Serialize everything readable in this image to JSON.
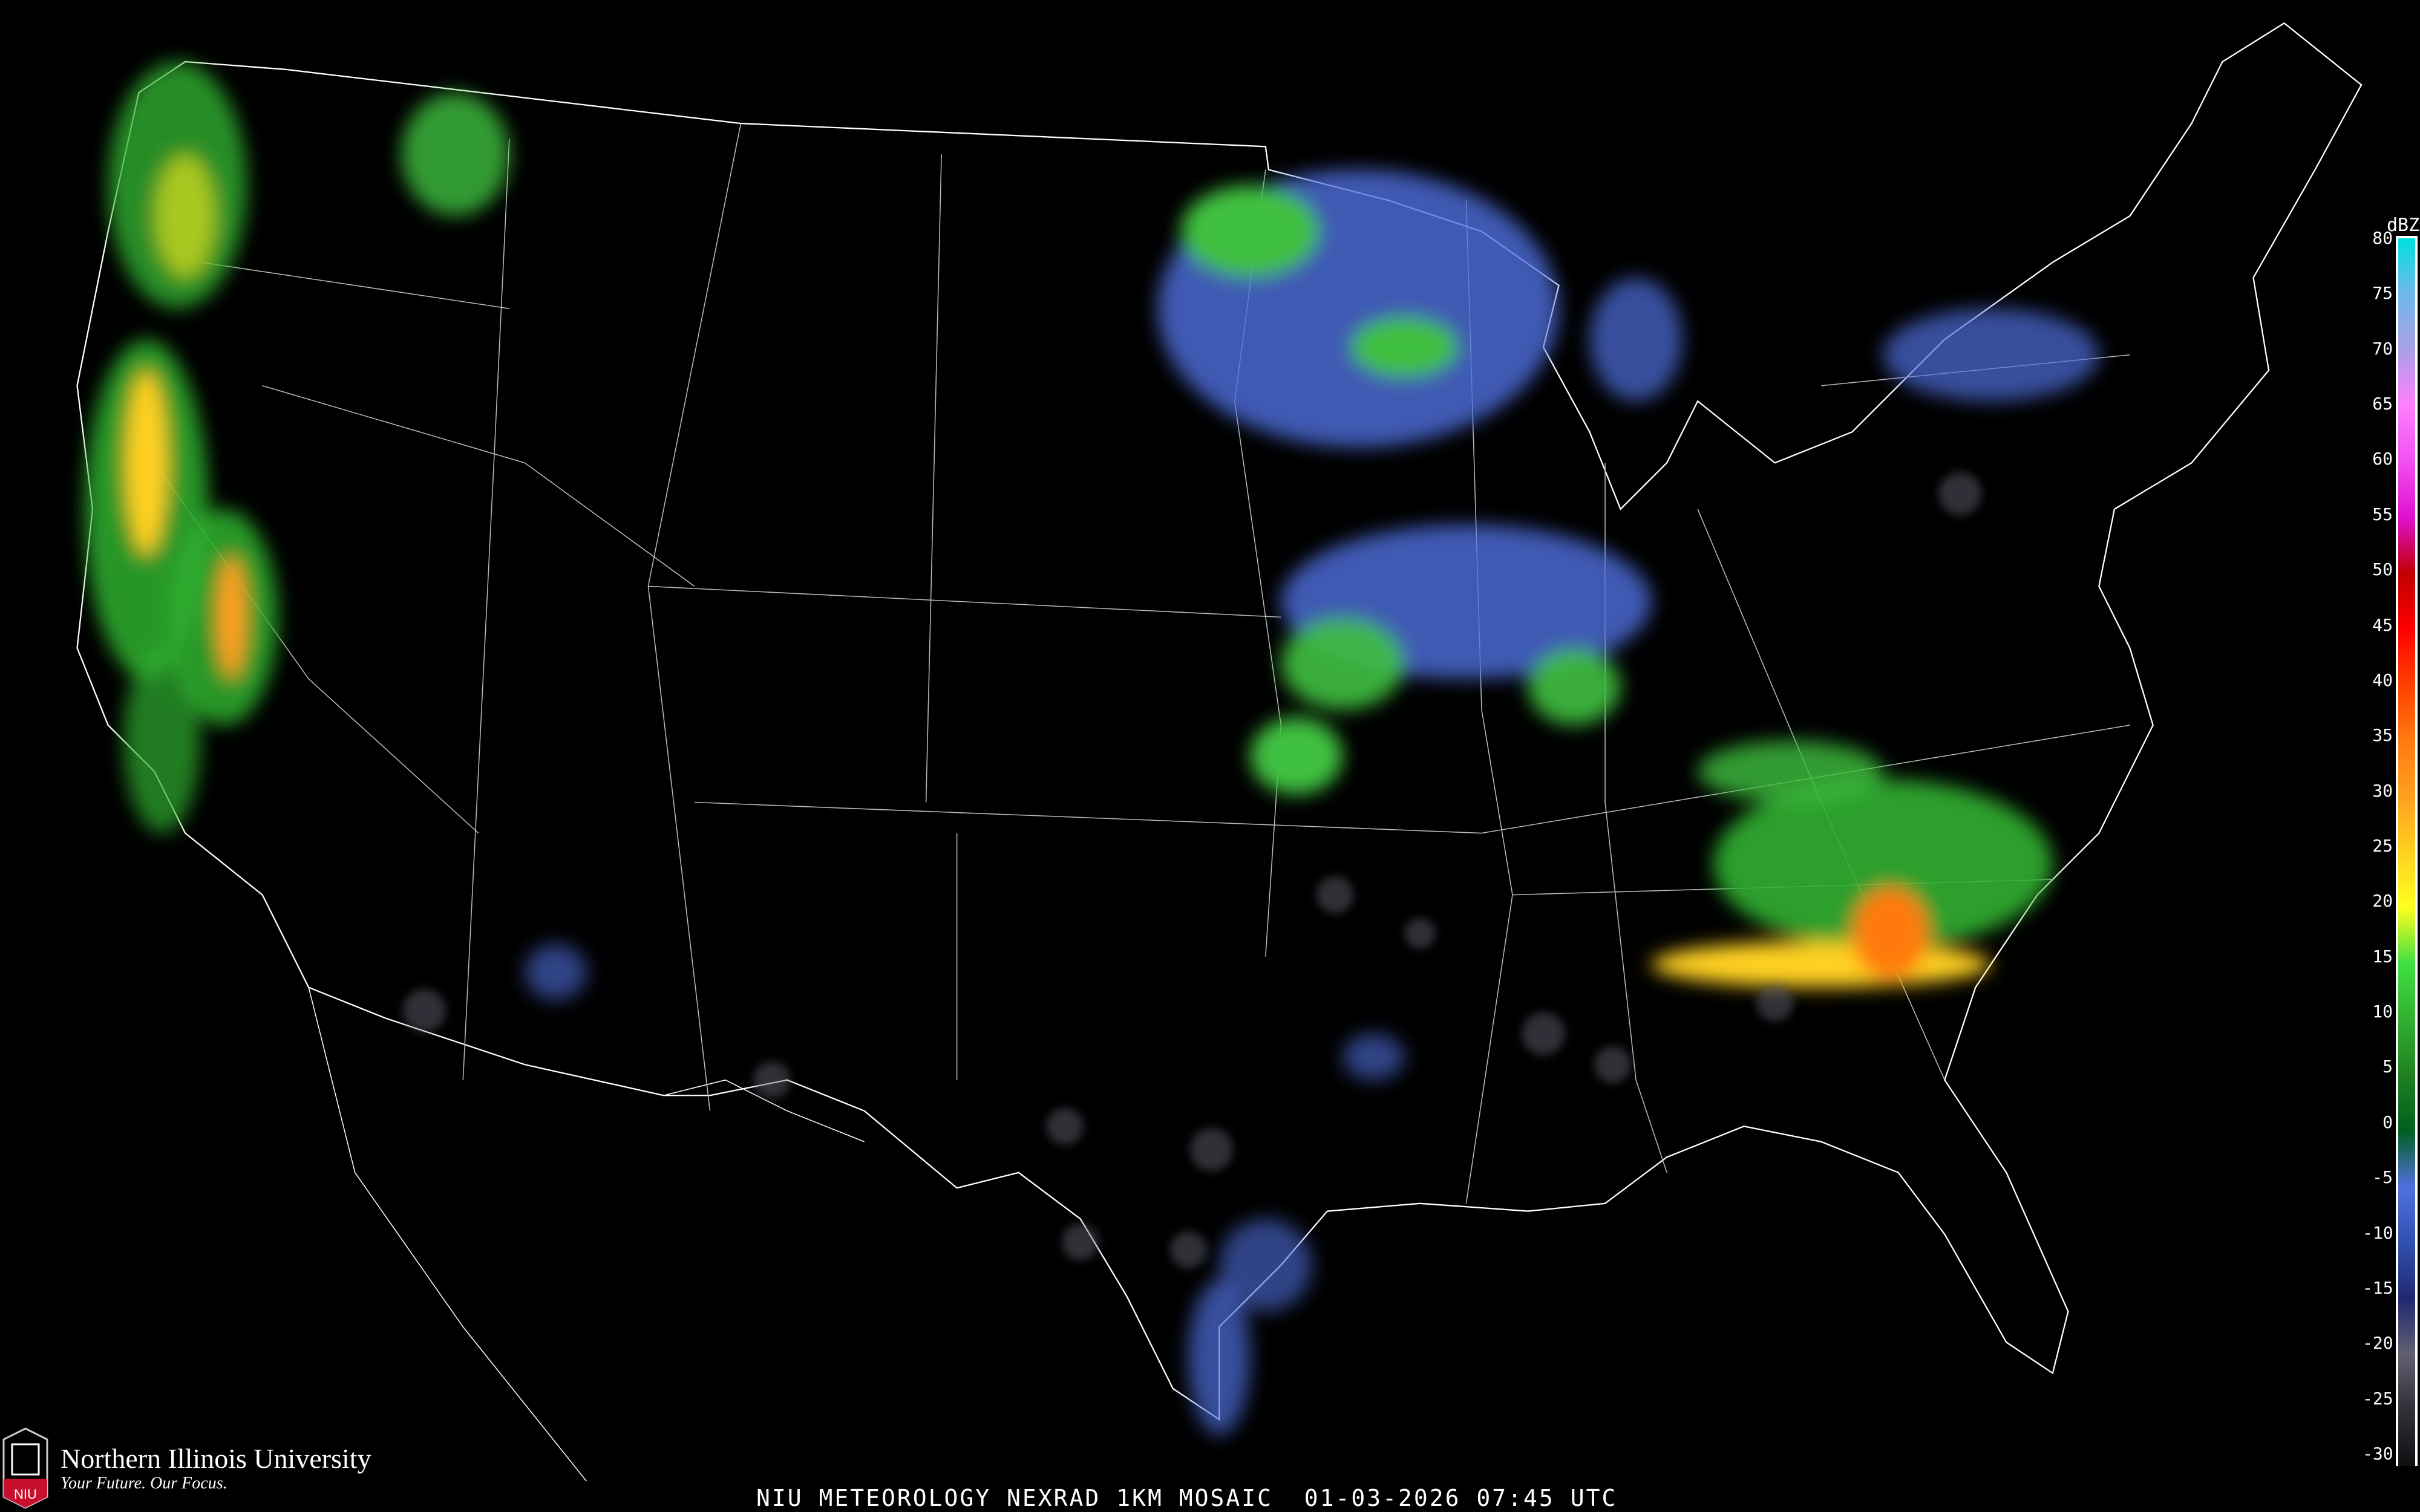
{
  "title": "NIU METEOROLOGY NEXRAD 1KM MOSAIC",
  "date": "01-03-2026",
  "time": "07:45 UTC",
  "brand": {
    "name": "Northern Illinois University",
    "tagline": "Your Future. Our Focus.",
    "short": "NIU",
    "color": "#c8102e"
  },
  "legend": {
    "unit": "dBZ",
    "ticks": [
      "80",
      "75",
      "70",
      "65",
      "60",
      "55",
      "50",
      "45",
      "40",
      "35",
      "30",
      "25",
      "20",
      "15",
      "10",
      "5",
      "0",
      "-5",
      "-10",
      "-15",
      "-20",
      "-25",
      "-30"
    ],
    "colors": [
      "#ffffff",
      "#00e0e0",
      "#70b8e8",
      "#a8a0e8",
      "#ff80ff",
      "#f050f0",
      "#e010d0",
      "#c00000",
      "#ff0000",
      "#ff4000",
      "#ff7a10",
      "#ffa020",
      "#ffd020",
      "#ffff20",
      "#40e040",
      "#30b030",
      "#208020",
      "#006020",
      "#5070e0",
      "#3050b0",
      "#202870",
      "#606070",
      "#303038",
      "#101012"
    ]
  },
  "map": {
    "background": "#000000",
    "boundary_color": "#ffffff",
    "county_color": "#404040",
    "road_color": "#7a4020"
  }
}
